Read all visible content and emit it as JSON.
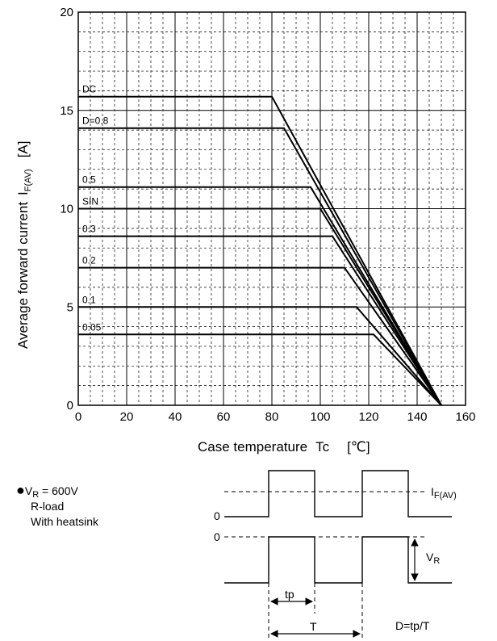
{
  "chart_data": {
    "type": "line",
    "x": {
      "label_prefix": "Case temperature",
      "label_symbol": "Tc",
      "unit": "[℃]",
      "ticks": [
        0,
        20,
        40,
        60,
        80,
        100,
        120,
        140,
        160
      ],
      "range": [
        0,
        160
      ]
    },
    "y": {
      "label_prefix": "Average forward current",
      "label_symbol": "I",
      "label_sub": "F(AV)",
      "unit": "[A]",
      "ticks": [
        0,
        5,
        10,
        15,
        20
      ],
      "range": [
        0,
        20
      ]
    },
    "grid": true,
    "series": [
      {
        "name": "DC",
        "points": [
          [
            0,
            15.7
          ],
          [
            80,
            15.7
          ],
          [
            150,
            0
          ]
        ]
      },
      {
        "name": "D=0.8",
        "points": [
          [
            0,
            14.1
          ],
          [
            85,
            14.1
          ],
          [
            150,
            0
          ]
        ]
      },
      {
        "name": "0.5",
        "points": [
          [
            0,
            11.1
          ],
          [
            96,
            11.1
          ],
          [
            150,
            0
          ]
        ]
      },
      {
        "name": "SIN",
        "points": [
          [
            0,
            10.0
          ],
          [
            100,
            10.0
          ],
          [
            150,
            0
          ]
        ]
      },
      {
        "name": "0.3",
        "points": [
          [
            0,
            8.6
          ],
          [
            105,
            8.6
          ],
          [
            150,
            0
          ]
        ]
      },
      {
        "name": "0.2",
        "points": [
          [
            0,
            7.0
          ],
          [
            110,
            7.0
          ],
          [
            150,
            0
          ]
        ]
      },
      {
        "name": "0.1",
        "points": [
          [
            0,
            5.0
          ],
          [
            115,
            5.0
          ],
          [
            150,
            0
          ]
        ]
      },
      {
        "name": "0.05",
        "points": [
          [
            0,
            3.6
          ],
          [
            122,
            3.6
          ],
          [
            150,
            0
          ]
        ]
      }
    ]
  },
  "conditions": {
    "bullet": "●",
    "vr_symbol": "V",
    "vr_sub": "R",
    "vr_value": " = 600V",
    "load": "R-load",
    "heatsink": "With heatsink"
  },
  "waveform": {
    "current_label": "I",
    "current_sub": "F(AV)",
    "zero_top": "0",
    "zero_bottom": "0",
    "vr_label": "V",
    "vr_sub": "R",
    "tp_label": "tp",
    "period_label": "T",
    "duty_formula": "D=tp/T"
  }
}
